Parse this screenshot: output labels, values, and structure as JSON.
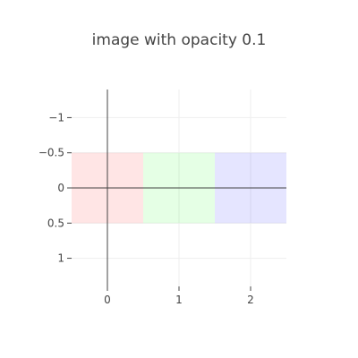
{
  "chart_data": {
    "type": "heatmap",
    "title": "image with opacity 0.1",
    "xlabel": "",
    "ylabel": "",
    "x": [
      0,
      1,
      2
    ],
    "xlim": [
      -0.5,
      2.5
    ],
    "ylim": [
      1.4,
      -1.4
    ],
    "y_reversed": true,
    "grid": true,
    "x_ticks": [
      {
        "value": 0,
        "label": "0"
      },
      {
        "value": 1,
        "label": "1"
      },
      {
        "value": 2,
        "label": "2"
      }
    ],
    "y_ticks": [
      {
        "value": -1,
        "label": "−1"
      },
      {
        "value": -0.5,
        "label": "−0.5"
      },
      {
        "value": 0,
        "label": "0"
      },
      {
        "value": 0.5,
        "label": "0.5"
      },
      {
        "value": 1,
        "label": "1"
      }
    ],
    "pixels": [
      {
        "x": 0,
        "y": 0,
        "color": "#ff0000",
        "rgb": [
          255,
          0,
          0
        ]
      },
      {
        "x": 1,
        "y": 0,
        "color": "#00ff00",
        "rgb": [
          0,
          255,
          0
        ]
      },
      {
        "x": 2,
        "y": 0,
        "color": "#0000ff",
        "rgb": [
          0,
          0,
          255
        ]
      }
    ],
    "opacity": 0.1
  },
  "colors": {
    "grid": "#eeeeee",
    "zeroline": "#444444",
    "tick": "#444444",
    "title": "#444444"
  }
}
